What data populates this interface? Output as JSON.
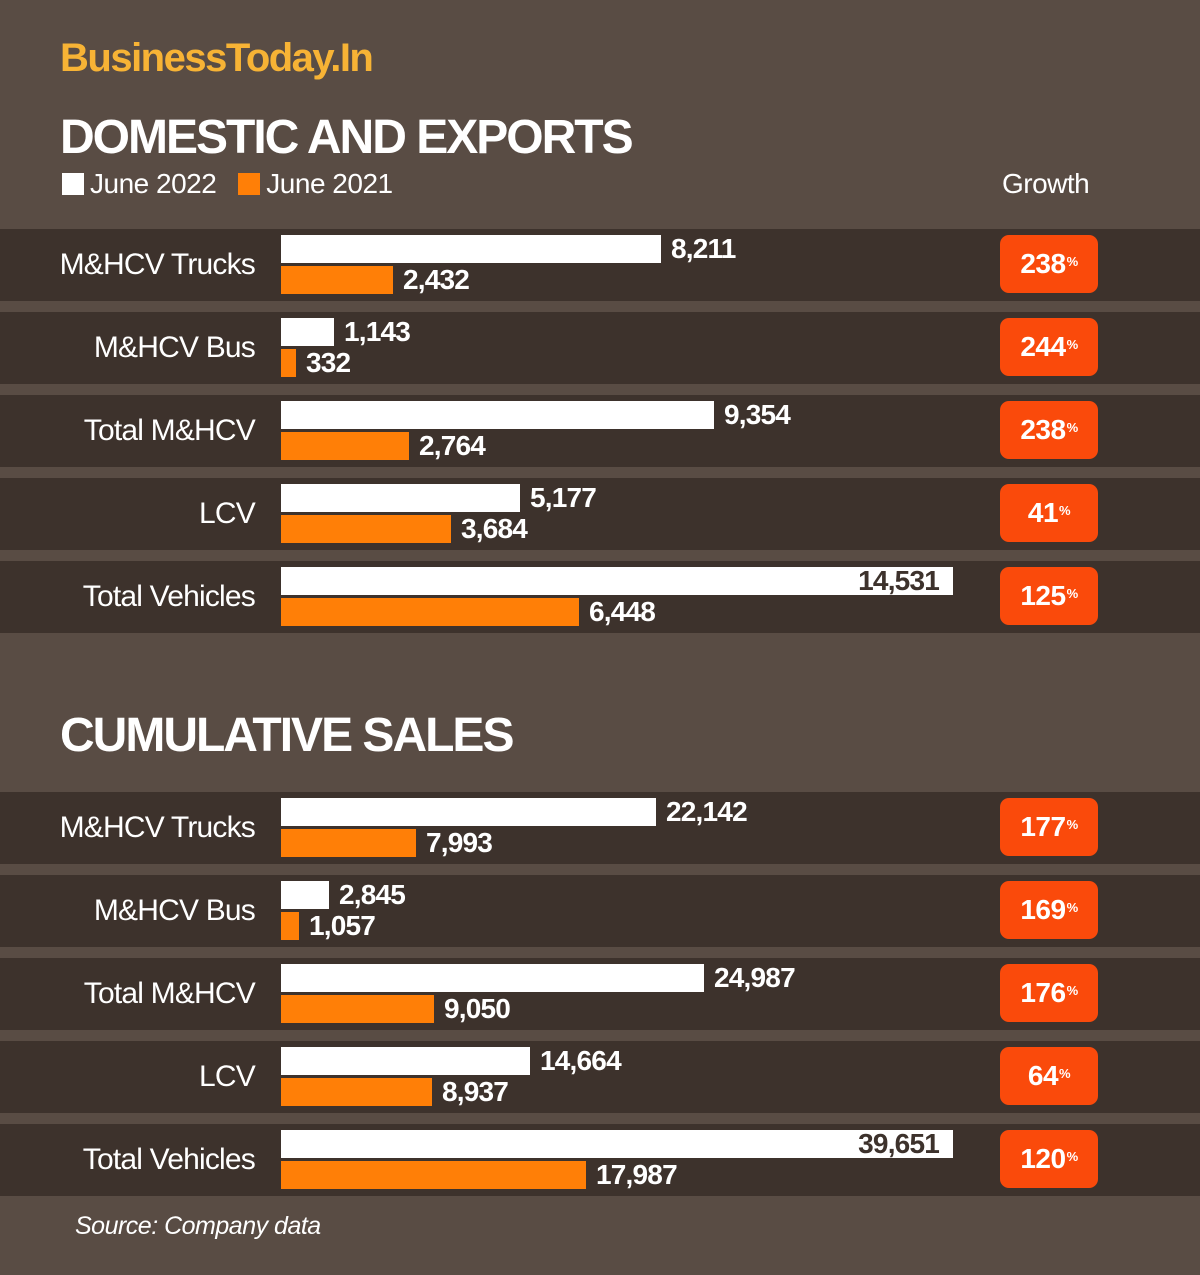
{
  "brand": "BusinessToday.In",
  "legend": {
    "june_2022": "June 2022",
    "june_2021": "June 2021",
    "growth_header": "Growth"
  },
  "colors": {
    "background": "#594c44",
    "row": "#3d322c",
    "june_2022": "#ffffff",
    "june_2021": "#ff7f07",
    "growth_badge": "#fa4a0b",
    "brand": "#f7b335"
  },
  "source": "Source: Company data",
  "chart_data": [
    {
      "type": "bar",
      "orientation": "horizontal",
      "title": "DOMESTIC AND EXPORTS",
      "xlim": [
        0,
        14531
      ],
      "categories": [
        "M&HCV Trucks",
        "M&HCV Bus",
        "Total M&HCV",
        "LCV",
        "Total Vehicles"
      ],
      "series": [
        {
          "name": "June 2022",
          "values": [
            8211,
            1143,
            9354,
            5177,
            14531
          ],
          "labels": [
            "8,211",
            "1,143",
            "9,354",
            "5,177",
            "14,531"
          ]
        },
        {
          "name": "June 2021",
          "values": [
            2432,
            332,
            2764,
            3684,
            6448
          ],
          "labels": [
            "2,432",
            "332",
            "2,764",
            "3,684",
            "6,448"
          ]
        }
      ],
      "growth": [
        "238",
        "244",
        "238",
        "41",
        "125"
      ],
      "growth_unit": "%"
    },
    {
      "type": "bar",
      "orientation": "horizontal",
      "title": "CUMULATIVE SALES",
      "xlim": [
        0,
        39651
      ],
      "categories": [
        "M&HCV Trucks",
        "M&HCV Bus",
        "Total M&HCV",
        "LCV",
        "Total Vehicles"
      ],
      "series": [
        {
          "name": "June 2022",
          "values": [
            22142,
            2845,
            24987,
            14664,
            39651
          ],
          "labels": [
            "22,142",
            "2,845",
            "24,987",
            "14,664",
            "39,651"
          ]
        },
        {
          "name": "June 2021",
          "values": [
            7993,
            1057,
            9050,
            8937,
            17987
          ],
          "labels": [
            "7,993",
            "1,057",
            "9,050",
            "8,937",
            "17,987"
          ]
        }
      ],
      "growth": [
        "177",
        "169",
        "176",
        "64",
        "120"
      ],
      "growth_unit": "%"
    }
  ]
}
